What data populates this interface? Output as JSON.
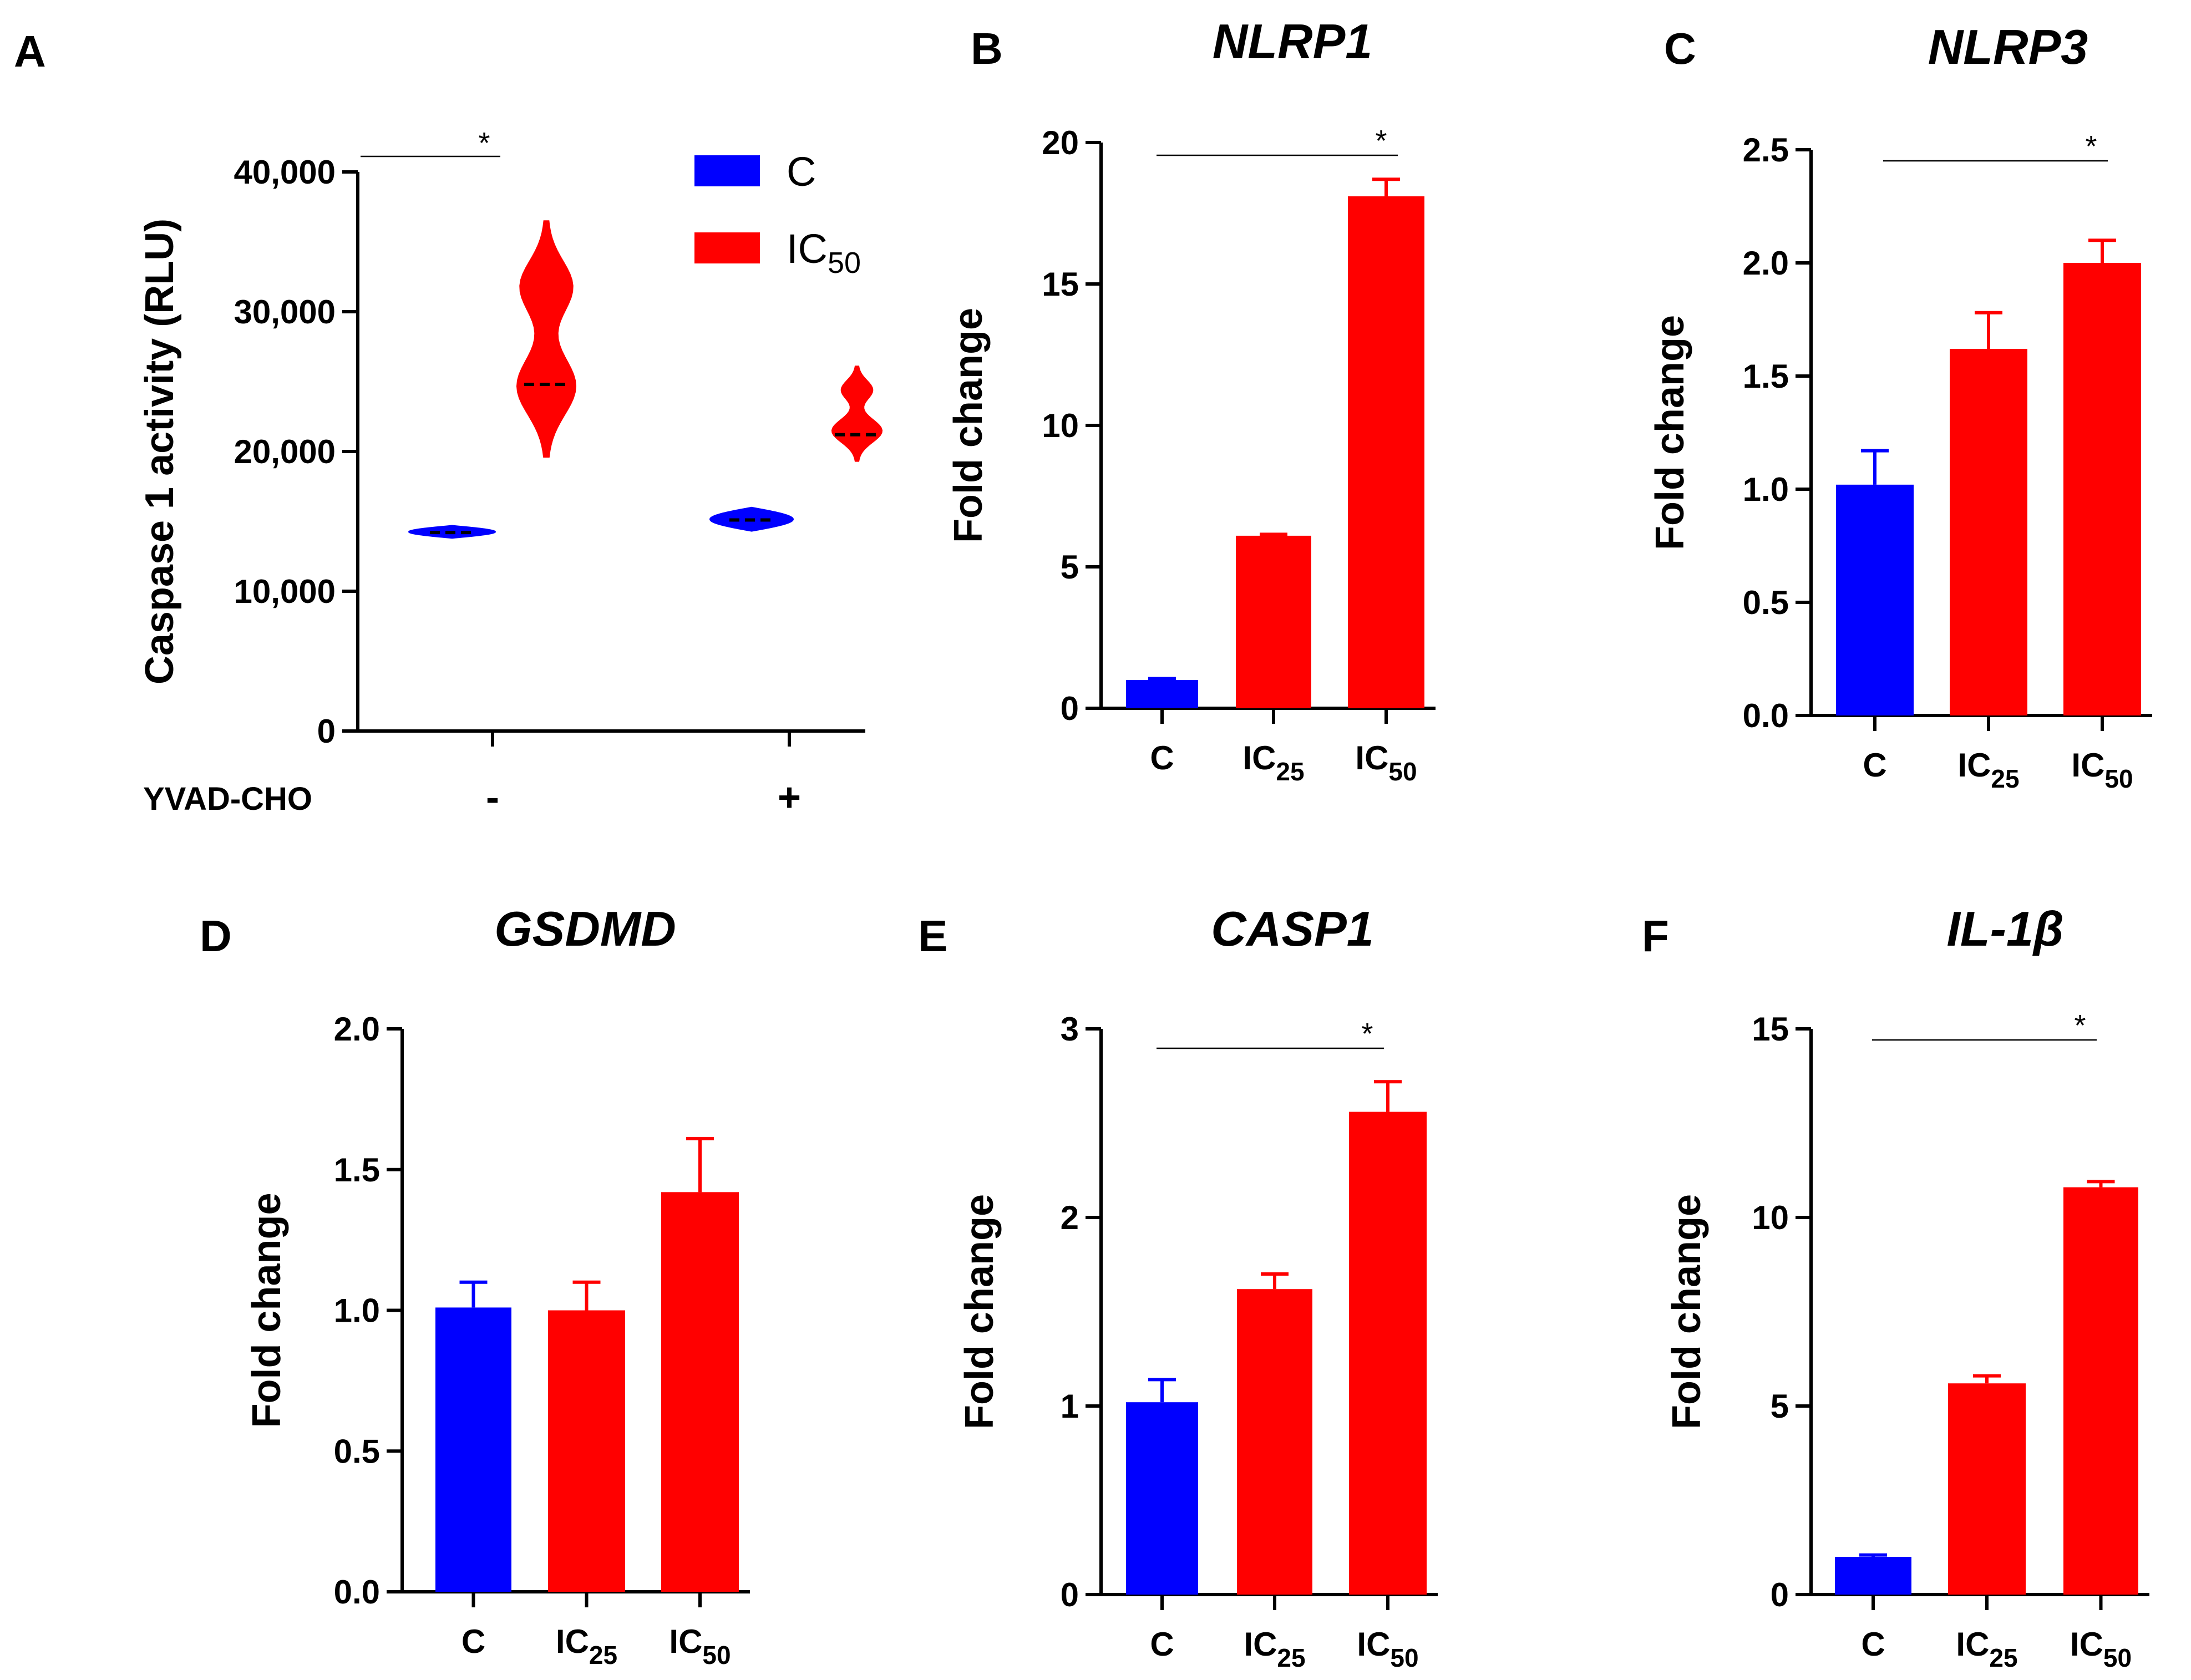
{
  "colors": {
    "control": "#0000ff",
    "treated": "#ff0000",
    "axis": "#000000"
  },
  "chart_data": [
    {
      "panel": "A",
      "type": "violin",
      "title": "",
      "ylabel": "Caspase 1 activity (RLU)",
      "xlabel": "YVAD-CHO",
      "groups": [
        "-",
        "+"
      ],
      "ylim": [
        0,
        40000
      ],
      "yticks": [
        "0",
        "10,000",
        "20,000",
        "30,000",
        "40,000"
      ],
      "legend": [
        {
          "name": "C",
          "sub": ""
        },
        {
          "name": "IC",
          "sub": "50"
        }
      ],
      "series": [
        {
          "name": "C",
          "median": [
            14200,
            15100
          ],
          "range": [
            [
              13800,
              14700
            ],
            [
              14300,
              16000
            ]
          ]
        },
        {
          "name": "IC50",
          "median": [
            24800,
            21200
          ],
          "range": [
            [
              19600,
              36500
            ],
            [
              19300,
              26100
            ]
          ]
        }
      ],
      "significance": [
        {
          "label": "*"
        }
      ]
    },
    {
      "panel": "B",
      "type": "bar",
      "title": "NLRP1",
      "ylabel": "Fold change",
      "categories": [
        {
          "name": "C",
          "sub": ""
        },
        {
          "name": "IC",
          "sub": "25"
        },
        {
          "name": "IC",
          "sub": "50"
        }
      ],
      "values": [
        1.0,
        6.1,
        18.1
      ],
      "errors": [
        0.05,
        0.05,
        0.6
      ],
      "ylim": [
        0,
        20
      ],
      "yticks": [
        "0",
        "5",
        "10",
        "15",
        "20"
      ],
      "significance": [
        {
          "label": "*"
        }
      ]
    },
    {
      "panel": "C",
      "type": "bar",
      "title": "NLRP3",
      "ylabel": "Fold change",
      "categories": [
        {
          "name": "C",
          "sub": ""
        },
        {
          "name": "IC",
          "sub": "25"
        },
        {
          "name": "IC",
          "sub": "50"
        }
      ],
      "values": [
        1.02,
        1.62,
        2.0
      ],
      "errors": [
        0.15,
        0.16,
        0.1
      ],
      "ylim": [
        0,
        2.5
      ],
      "yticks": [
        "0.0",
        "0.5",
        "1.0",
        "1.5",
        "2.0",
        "2.5"
      ],
      "significance": [
        {
          "label": "*"
        }
      ]
    },
    {
      "panel": "D",
      "type": "bar",
      "title": "GSDMD",
      "ylabel": "Fold change",
      "categories": [
        {
          "name": "C",
          "sub": ""
        },
        {
          "name": "IC",
          "sub": "25"
        },
        {
          "name": "IC",
          "sub": "50"
        }
      ],
      "values": [
        1.01,
        1.0,
        1.42
      ],
      "errors": [
        0.09,
        0.1,
        0.19
      ],
      "ylim": [
        0,
        2.0
      ],
      "yticks": [
        "0.0",
        "0.5",
        "1.0",
        "1.5",
        "2.0"
      ],
      "significance": []
    },
    {
      "panel": "E",
      "type": "bar",
      "title": "CASP1",
      "ylabel": "Fold change",
      "categories": [
        {
          "name": "C",
          "sub": ""
        },
        {
          "name": "IC",
          "sub": "25"
        },
        {
          "name": "IC",
          "sub": "50"
        }
      ],
      "values": [
        1.02,
        1.62,
        2.56
      ],
      "errors": [
        0.12,
        0.08,
        0.16
      ],
      "ylim": [
        0,
        3
      ],
      "yticks": [
        "0",
        "1",
        "2",
        "3"
      ],
      "significance": [
        {
          "label": "*"
        }
      ]
    },
    {
      "panel": "F",
      "type": "bar",
      "title": "IL-1β",
      "ylabel": "Fold change",
      "categories": [
        {
          "name": "C",
          "sub": ""
        },
        {
          "name": "IC",
          "sub": "25"
        },
        {
          "name": "IC",
          "sub": "50"
        }
      ],
      "values": [
        1.0,
        5.6,
        10.8
      ],
      "errors": [
        0.05,
        0.2,
        0.15
      ],
      "ylim": [
        0,
        15
      ],
      "yticks": [
        "0",
        "5",
        "10",
        "15"
      ],
      "significance": [
        {
          "label": "*"
        }
      ]
    }
  ]
}
